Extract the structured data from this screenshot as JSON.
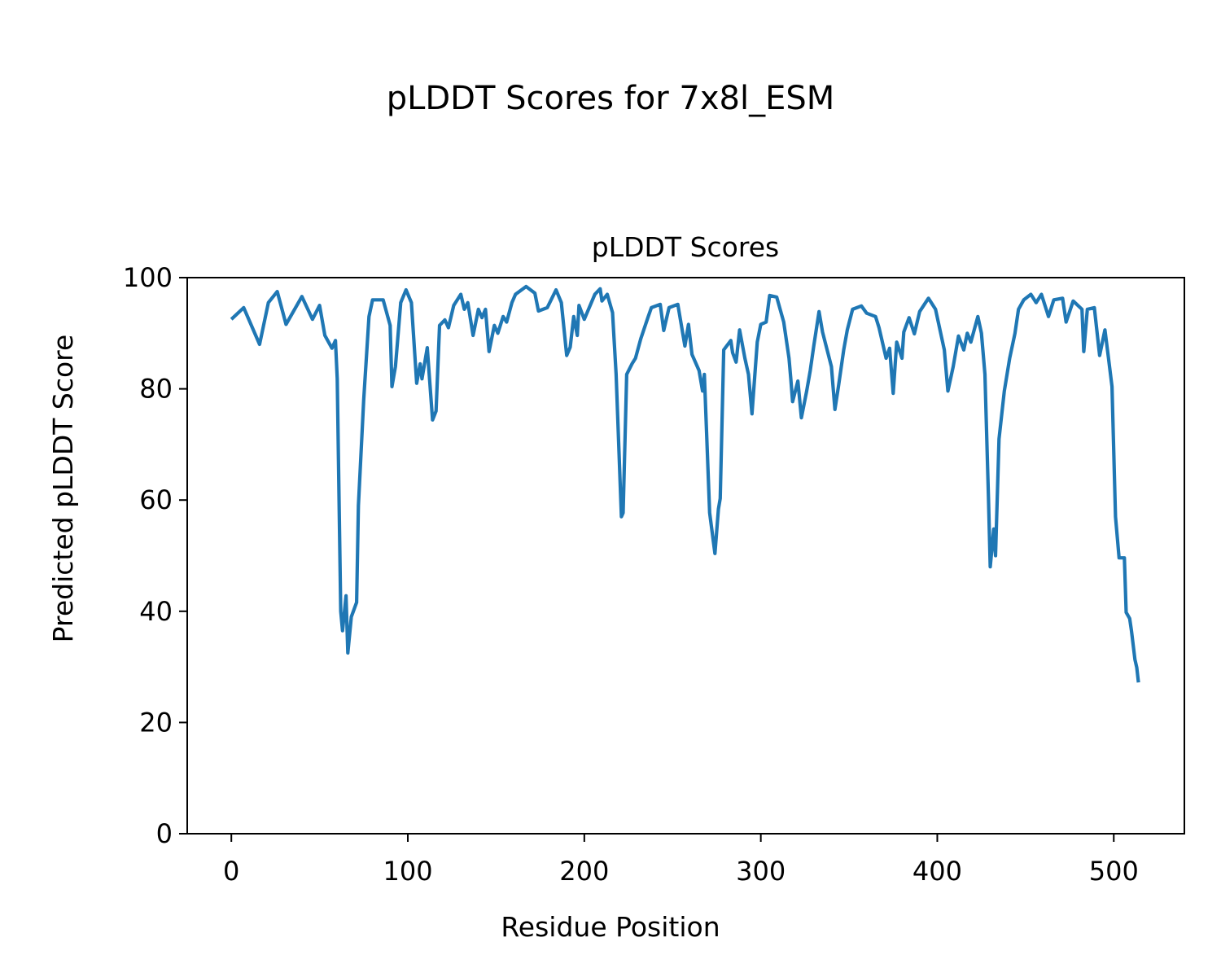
{
  "figure_title": "pLDDT Scores for 7x8l_ESM",
  "chart_data": {
    "type": "line",
    "title": "pLDDT Scores",
    "xlabel": "Residue Position",
    "ylabel": "Predicted pLDDT Score",
    "xlim": [
      -25,
      540
    ],
    "ylim": [
      0,
      100
    ],
    "xticks": [
      0,
      100,
      200,
      300,
      400,
      500
    ],
    "yticks": [
      0,
      20,
      40,
      60,
      80,
      100
    ],
    "grid": false,
    "line_color": "#1f77b4",
    "series": [
      {
        "name": "pLDDT",
        "x": [
          0,
          7,
          16,
          21,
          26,
          31,
          40,
          46,
          50,
          53,
          57,
          59,
          60,
          62,
          63,
          65,
          66,
          68,
          71,
          72,
          75,
          78,
          80,
          86,
          90,
          91,
          93,
          96,
          99,
          102,
          105,
          107,
          108,
          111,
          114,
          116,
          118,
          121,
          123,
          126,
          130,
          132,
          134,
          137,
          140,
          142,
          144,
          146,
          149,
          151,
          154,
          156,
          159,
          161,
          167,
          172,
          174,
          179,
          184,
          187,
          190,
          192,
          194,
          196,
          197,
          200,
          206,
          209,
          210,
          213,
          216,
          218,
          221,
          222,
          224,
          227,
          229,
          232,
          236,
          238,
          243,
          245,
          248,
          253,
          257,
          259,
          261,
          265,
          267,
          268,
          271,
          274,
          276,
          277,
          279,
          283,
          284,
          286,
          288,
          291,
          293,
          295,
          298,
          300,
          303,
          305,
          309,
          313,
          316,
          317,
          318,
          321,
          323,
          326,
          328,
          330,
          333,
          335,
          340,
          342,
          344,
          347,
          349,
          352,
          357,
          360,
          365,
          367,
          371,
          373,
          375,
          377,
          380,
          381,
          384,
          387,
          390,
          395,
          399,
          404,
          406,
          409,
          412,
          415,
          417,
          419,
          423,
          425,
          427,
          429,
          430,
          432,
          433,
          435,
          438,
          441,
          444,
          446,
          449,
          453,
          456,
          459,
          463,
          466,
          471,
          473,
          477,
          482,
          483,
          485,
          489,
          492,
          495,
          497,
          499,
          501,
          503,
          506,
          507,
          509,
          510,
          512,
          513,
          514
        ],
        "y": [
          92.5,
          94.6,
          88,
          95.5,
          97.5,
          91.6,
          96.6,
          92.5,
          95,
          89.6,
          87.3,
          88.7,
          81.8,
          40,
          36.5,
          42.8,
          32.5,
          39,
          41.6,
          59,
          78,
          93,
          96,
          96,
          91.4,
          80.4,
          84,
          95.5,
          97.8,
          95.5,
          81,
          84.5,
          81.8,
          87.4,
          74.4,
          76,
          91.4,
          92.4,
          91,
          95,
          97,
          94.3,
          95.5,
          89.6,
          94.3,
          92.8,
          94.3,
          86.7,
          91.4,
          90,
          93,
          92,
          95.5,
          97,
          98.4,
          97.2,
          94,
          94.6,
          97.8,
          95.5,
          86,
          87.5,
          93,
          89.6,
          95,
          92.5,
          97,
          98,
          95.8,
          97,
          93.7,
          82.6,
          57,
          57.7,
          82.6,
          84.5,
          85.5,
          89,
          92.8,
          94.6,
          95.2,
          90.5,
          94.6,
          95.2,
          87.7,
          91.6,
          86.2,
          83.3,
          79.6,
          82.6,
          57.7,
          50.4,
          58.4,
          60.3,
          87,
          88.7,
          86.5,
          84.8,
          90.6,
          85.5,
          82.6,
          75.5,
          88.4,
          91.6,
          92,
          96.8,
          96.5,
          92,
          85.5,
          81.8,
          77.7,
          81.4,
          74.8,
          79.6,
          83.3,
          87.7,
          93.9,
          90.2,
          84,
          76.3,
          80.4,
          87,
          90.6,
          94.3,
          94.9,
          93.6,
          93,
          91,
          85.5,
          87.3,
          79.2,
          88.4,
          85.5,
          90.2,
          92.8,
          89.9,
          93.9,
          96.3,
          94.3,
          87,
          79.6,
          84,
          89.5,
          87,
          90,
          88.4,
          93,
          90,
          82.6,
          60.6,
          48,
          54.8,
          50,
          71,
          79.6,
          85.5,
          90,
          94.3,
          96,
          97,
          95.5,
          97,
          93,
          96,
          96.3,
          92,
          95.8,
          94.3,
          86.7,
          94.3,
          94.6,
          86,
          90.6,
          85.5,
          80.4,
          57,
          49.6,
          49.6,
          39.8,
          38.7,
          36.5,
          31.3,
          29.9,
          27.2
        ]
      }
    ]
  }
}
